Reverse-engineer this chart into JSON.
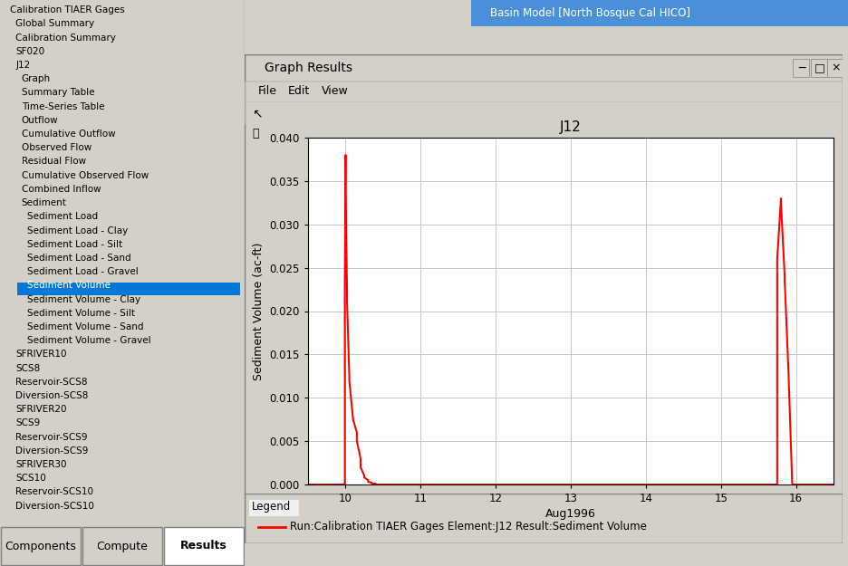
{
  "title": "J12",
  "xlabel": "Aug1996",
  "ylabel": "Sediment Volume (ac-ft)",
  "xlim": [
    9.5,
    16.5
  ],
  "ylim": [
    0.0,
    0.04
  ],
  "yticks": [
    0.0,
    0.005,
    0.01,
    0.015,
    0.02,
    0.025,
    0.03,
    0.035,
    0.04
  ],
  "xticks": [
    10,
    11,
    12,
    13,
    14,
    15,
    16
  ],
  "line_color": "#ff0000",
  "line_width": 1.5,
  "legend_label": "Run:Calibration TIAER Gages Element:J12 Result:Sediment Volume",
  "grid_color": "#c8c8c8",
  "x": [
    9.5,
    9.99,
    9.99,
    10.0,
    10.0,
    10.02,
    10.02,
    10.05,
    10.05,
    10.1,
    10.1,
    10.15,
    10.15,
    10.2,
    10.2,
    10.25,
    10.25,
    10.3,
    10.3,
    10.35,
    10.35,
    10.4,
    10.4,
    10.45,
    10.45,
    10.5,
    10.5,
    10.6,
    10.6,
    10.7,
    10.7,
    10.8,
    10.8,
    11.0,
    11.0,
    15.7,
    15.7,
    15.75,
    15.75,
    15.8,
    15.8,
    15.85,
    15.85,
    15.9,
    15.9,
    15.95,
    15.95,
    16.0,
    16.0,
    16.05,
    16.05,
    16.1,
    16.1,
    16.15,
    16.15,
    16.2,
    16.2,
    16.5
  ],
  "y": [
    0.0,
    0.0,
    0.0225,
    0.038,
    0.034,
    0.022,
    0.021,
    0.0125,
    0.012,
    0.0075,
    0.0075,
    0.006,
    0.005,
    0.003,
    0.002,
    0.001,
    0.0008,
    0.0005,
    0.0003,
    0.0002,
    0.0001,
    0.0001,
    0.0,
    0.0,
    0.0,
    0.0,
    0.0,
    0.0,
    0.0,
    0.0,
    0.0,
    0.0,
    0.0,
    0.0,
    0.0,
    0.0,
    0.0,
    0.0,
    0.026,
    0.033,
    0.0325,
    0.024,
    0.0235,
    0.013,
    0.013,
    0.0,
    0.0,
    0.0,
    0.0,
    0.0,
    0.0,
    0.0,
    0.0,
    0.0,
    0.0,
    0.0,
    0.0,
    0.0
  ],
  "outer_bg": "#d4d0c8",
  "panel_bg": "#f0f0f0",
  "graph_bg": "#ffffff",
  "titlebar_bg": "#0055aa",
  "menu_bg": "#f0f0f0",
  "tree_items": [
    "Calibration TIAER Gages",
    "  Global Summary",
    "  Calibration Summary",
    "  SF020",
    "  J12",
    "    Graph",
    "    Summary Table",
    "    Time-Series Table",
    "    Outflow",
    "    Cumulative Outflow",
    "    Observed Flow",
    "    Residual Flow",
    "    Cumulative Observed Flow",
    "    Combined Inflow",
    "    Sediment",
    "      Sediment Load",
    "      Sediment Load - Clay",
    "      Sediment Load - Silt",
    "      Sediment Load - Sand",
    "      Sediment Load - Gravel",
    "      Sediment Volume",
    "      Sediment Volume - Clay",
    "      Sediment Volume - Silt",
    "      Sediment Volume - Sand",
    "      Sediment Volume - Gravel",
    "  SFRIVER10",
    "  SCS8",
    "  Reservoir-SCS8",
    "  Diversion-SCS8",
    "  SFRIVER20",
    "  SCS9",
    "  Reservoir-SCS9",
    "  Diversion-SCS9",
    "  SFRIVER30",
    "  SCS10",
    "  Reservoir-SCS10",
    "  Diversion-SCS10"
  ],
  "highlighted_item": "Sediment Volume",
  "tab_labels": [
    "Components",
    "Compute",
    "Results"
  ],
  "active_tab": "Results",
  "top_right_title": "Basin Model [North Bosque Cal HICO]",
  "window_title": "Graph Results"
}
